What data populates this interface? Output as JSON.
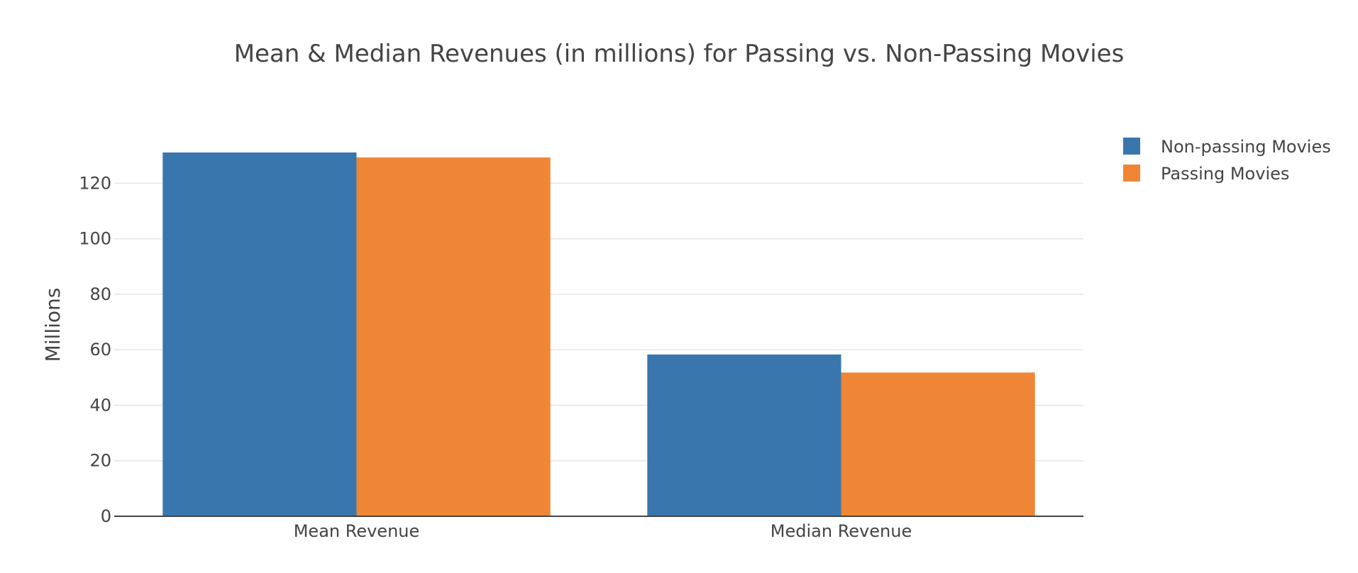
{
  "chart_data": {
    "type": "bar",
    "title": "Mean & Median Revenues (in millions) for Passing vs. Non-Passing Movies",
    "xlabel": "",
    "ylabel": "Millions",
    "categories": [
      "Mean Revenue",
      "Median Revenue"
    ],
    "series": [
      {
        "name": "Non-passing Movies",
        "values": [
          131.1,
          58.3
        ],
        "color": "#3a76ae"
      },
      {
        "name": "Passing Movies",
        "values": [
          129.3,
          51.8
        ],
        "color": "#ef8636"
      }
    ],
    "ylim": [
      0,
      131.1
    ],
    "yticks": [
      0,
      20,
      40,
      60,
      80,
      100,
      120
    ],
    "grid": true,
    "legend_position": "top-right"
  }
}
